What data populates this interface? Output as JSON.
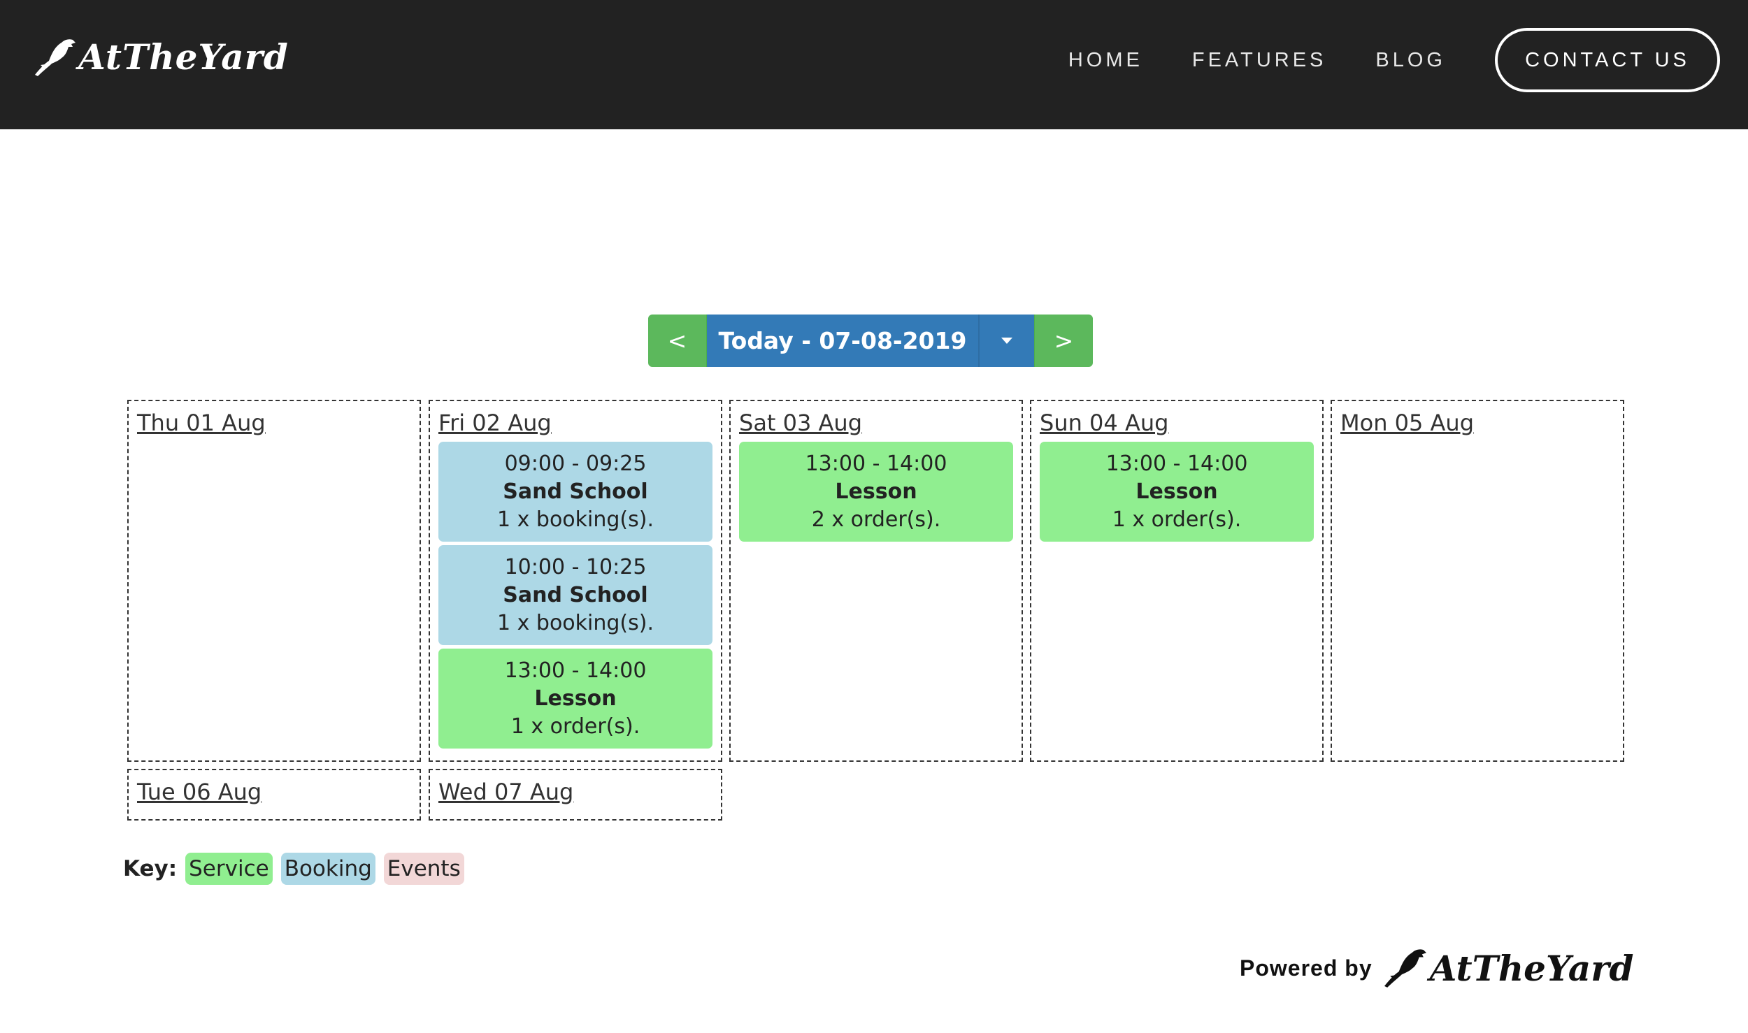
{
  "nav": {
    "brand": "AtTheYard",
    "links": [
      "HOME",
      "FEATURES",
      "BLOG"
    ],
    "contact": "CONTACT US"
  },
  "datebar": {
    "prev": "<",
    "today": "Today - 07-08-2019",
    "next": ">"
  },
  "days": [
    {
      "label": "Thu 01 Aug",
      "events": []
    },
    {
      "label": "Fri 02 Aug",
      "events": [
        {
          "time": "09:00 - 09:25",
          "title": "Sand School",
          "detail": "1 x booking(s).",
          "type": "booking"
        },
        {
          "time": "10:00 - 10:25",
          "title": "Sand School",
          "detail": "1 x booking(s).",
          "type": "booking"
        },
        {
          "time": "13:00 - 14:00",
          "title": "Lesson",
          "detail": "1 x order(s).",
          "type": "service"
        }
      ]
    },
    {
      "label": "Sat 03 Aug",
      "events": [
        {
          "time": "13:00 - 14:00",
          "title": "Lesson",
          "detail": "2 x order(s).",
          "type": "service"
        }
      ]
    },
    {
      "label": "Sun 04 Aug",
      "events": [
        {
          "time": "13:00 - 14:00",
          "title": "Lesson",
          "detail": "1 x order(s).",
          "type": "service"
        }
      ]
    },
    {
      "label": "Mon 05 Aug",
      "events": []
    },
    {
      "label": "Tue 06 Aug",
      "events": []
    },
    {
      "label": "Wed 07 Aug",
      "events": []
    }
  ],
  "key": {
    "label": "Key:",
    "items": [
      {
        "label": "Service",
        "color": "#90ee90"
      },
      {
        "label": "Booking",
        "color": "#add8e6"
      },
      {
        "label": "Events",
        "color": "#f2d7d7"
      }
    ]
  },
  "footer": {
    "powered_by": "Powered by",
    "brand": "AtTheYard"
  },
  "colors": {
    "navbar": "#222222",
    "primary": "#337ab7",
    "success": "#5cb85c",
    "service": "#90ee90",
    "booking": "#add8e6"
  }
}
